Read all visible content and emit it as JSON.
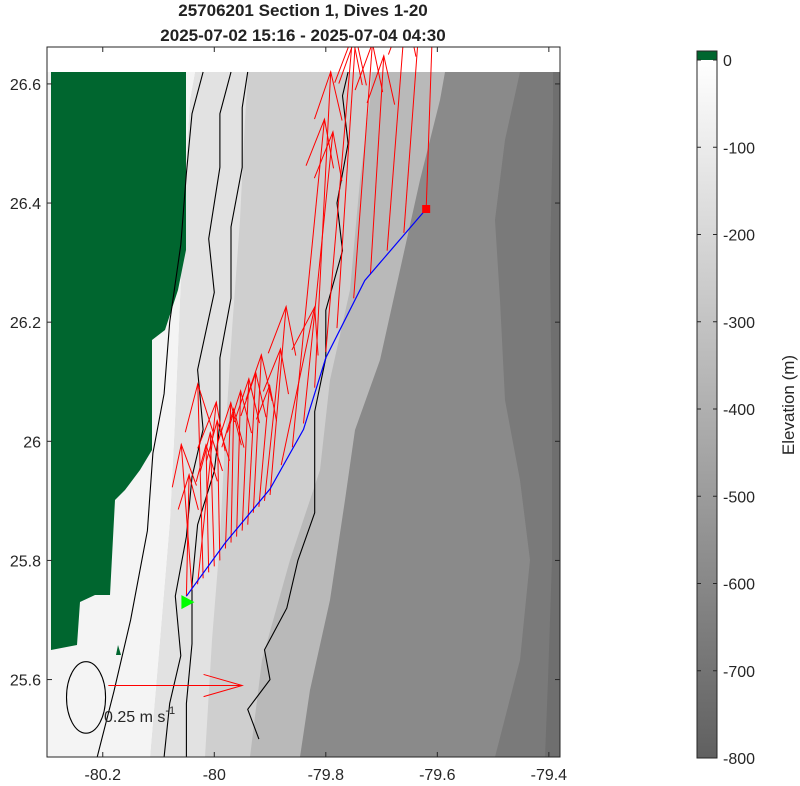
{
  "figure": {
    "title_line1": "25706201 Section 1, Dives 1-20",
    "title_line2": "2025-07-02 15:16 - 2025-07-04 04:30"
  },
  "chart_data": {
    "type": "map",
    "xlim": [
      -80.3,
      -79.38
    ],
    "ylim": [
      25.47,
      26.62
    ],
    "x_ticks": [
      -80.2,
      -80.0,
      -79.8,
      -79.6,
      -79.4
    ],
    "x_tick_labels": [
      "-80.2",
      "-80",
      "-79.8",
      "-79.6",
      "-79.4"
    ],
    "y_ticks": [
      25.6,
      25.8,
      26.0,
      26.2,
      26.4,
      26.6
    ],
    "y_tick_labels": [
      "25.6",
      "25.8",
      "26",
      "26.2",
      "26.4",
      "26.6"
    ],
    "track": {
      "color": "#0000ff",
      "points": [
        [
          -80.05,
          25.74
        ],
        [
          -79.98,
          25.83
        ],
        [
          -79.9,
          25.92
        ],
        [
          -79.84,
          26.02
        ],
        [
          -79.8,
          26.14
        ],
        [
          -79.73,
          26.27
        ],
        [
          -79.62,
          26.39
        ]
      ],
      "start": {
        "lon": -80.05,
        "lat": 25.73,
        "color": "#00ff00",
        "marker": "triangle"
      },
      "end": {
        "lon": -79.62,
        "lat": 26.39,
        "color": "#ff0000",
        "marker": "square"
      }
    },
    "current_vectors": {
      "color": "#ff0000",
      "vectors": [
        {
          "lon": -80.05,
          "lat": 25.74,
          "u": 0.02,
          "v": 1.0
        },
        {
          "lon": -80.04,
          "lat": 25.75,
          "u": -0.08,
          "v": 1.2
        },
        {
          "lon": -80.03,
          "lat": 25.76,
          "u": 0.14,
          "v": 1.5
        },
        {
          "lon": -80.02,
          "lat": 25.77,
          "u": -0.04,
          "v": 1.6
        },
        {
          "lon": -80.01,
          "lat": 25.78,
          "u": -0.02,
          "v": 1.05
        },
        {
          "lon": -80.0,
          "lat": 25.79,
          "u": -0.03,
          "v": 1.1
        },
        {
          "lon": -79.99,
          "lat": 25.8,
          "u": -0.02,
          "v": 1.15
        },
        {
          "lon": -79.98,
          "lat": 25.82,
          "u": 0.04,
          "v": 1.2
        },
        {
          "lon": -79.97,
          "lat": 25.83,
          "u": 0.02,
          "v": 1.1
        },
        {
          "lon": -79.96,
          "lat": 25.84,
          "u": 0.03,
          "v": 1.2
        },
        {
          "lon": -79.95,
          "lat": 25.85,
          "u": 0.05,
          "v": 1.25
        },
        {
          "lon": -79.94,
          "lat": 25.86,
          "u": 0.06,
          "v": 1.25
        },
        {
          "lon": -79.93,
          "lat": 25.88,
          "u": 0.06,
          "v": 1.3
        },
        {
          "lon": -79.92,
          "lat": 25.89,
          "u": 0.08,
          "v": 1.0
        },
        {
          "lon": -79.91,
          "lat": 25.9,
          "u": 0.12,
          "v": 1.25
        },
        {
          "lon": -79.9,
          "lat": 25.91,
          "u": 0.12,
          "v": 1.55
        },
        {
          "lon": -79.88,
          "lat": 25.96,
          "u": 0.25,
          "v": 1.3
        },
        {
          "lon": -79.86,
          "lat": 25.99,
          "u": 0.24,
          "v": 2.7
        },
        {
          "lon": -79.84,
          "lat": 26.03,
          "u": 0.22,
          "v": 2.4
        },
        {
          "lon": -79.82,
          "lat": 26.09,
          "u": 0.12,
          "v": 2.6
        },
        {
          "lon": -79.8,
          "lat": 26.15,
          "u": 0.2,
          "v": 2.6
        },
        {
          "lon": -79.78,
          "lat": 26.19,
          "u": 0.14,
          "v": 2.4
        },
        {
          "lon": -79.75,
          "lat": 26.24,
          "u": 0.14,
          "v": 2.1
        },
        {
          "lon": -79.72,
          "lat": 26.28,
          "u": 0.1,
          "v": 1.8
        },
        {
          "lon": -79.69,
          "lat": 26.32,
          "u": 0.14,
          "v": 2.0
        },
        {
          "lon": -79.66,
          "lat": 26.35,
          "u": 0.18,
          "v": 2.7
        },
        {
          "lon": -79.62,
          "lat": 26.39,
          "u": 0.06,
          "v": 1.9
        }
      ]
    },
    "scale_arrow": {
      "label": "0.25 m s",
      "superscript": "-1",
      "lon": -80.19,
      "lat": 25.59,
      "length_deg": 0.24
    },
    "isobaths": {
      "color": "#000000",
      "lines": [
        [
          [
            -80.21,
            25.47
          ],
          [
            -80.18,
            25.58
          ],
          [
            -80.15,
            25.7
          ],
          [
            -80.12,
            25.85
          ],
          [
            -80.11,
            25.98
          ],
          [
            -80.09,
            26.08
          ],
          [
            -80.08,
            26.2
          ],
          [
            -80.06,
            26.33
          ],
          [
            -80.05,
            26.45
          ],
          [
            -80.04,
            26.55
          ],
          [
            -80.02,
            26.62
          ]
        ],
        [
          [
            -80.09,
            25.47
          ],
          [
            -80.08,
            25.56
          ],
          [
            -80.06,
            25.64
          ],
          [
            -80.07,
            25.74
          ],
          [
            -80.05,
            25.84
          ],
          [
            -80.04,
            25.94
          ],
          [
            -80.02,
            26.02
          ],
          [
            -80.03,
            26.12
          ],
          [
            -80.0,
            26.25
          ],
          [
            -80.01,
            26.34
          ],
          [
            -79.99,
            26.46
          ],
          [
            -79.99,
            26.55
          ],
          [
            -79.97,
            26.62
          ]
        ],
        [
          [
            -80.05,
            25.47
          ],
          [
            -80.05,
            25.56
          ],
          [
            -80.04,
            25.66
          ],
          [
            -80.04,
            25.76
          ],
          [
            -80.03,
            25.86
          ],
          [
            -80.0,
            25.95
          ],
          [
            -79.99,
            26.03
          ],
          [
            -79.99,
            26.14
          ],
          [
            -79.97,
            26.24
          ],
          [
            -79.97,
            26.36
          ],
          [
            -79.95,
            26.46
          ],
          [
            -79.95,
            26.56
          ],
          [
            -79.94,
            26.62
          ]
        ],
        [
          [
            -79.92,
            25.5
          ],
          [
            -79.94,
            25.55
          ],
          [
            -79.9,
            25.6
          ],
          [
            -79.91,
            25.65
          ],
          [
            -79.87,
            25.72
          ],
          [
            -79.85,
            25.8
          ],
          [
            -79.82,
            25.88
          ],
          [
            -79.82,
            25.96
          ],
          [
            -79.82,
            26.05
          ],
          [
            -79.8,
            26.14
          ],
          [
            -79.8,
            26.22
          ],
          [
            -79.77,
            26.32
          ],
          [
            -79.78,
            26.4
          ],
          [
            -79.76,
            26.5
          ],
          [
            -79.77,
            26.58
          ],
          [
            -79.76,
            26.62
          ]
        ]
      ],
      "loop": {
        "lon": -80.23,
        "lat": 25.57,
        "rx": 0.035,
        "ry": 0.06
      }
    },
    "land_color": "#00662f",
    "colorbar": {
      "label": "Elevation (m)",
      "ticks": [
        0,
        -100,
        -200,
        -300,
        -400,
        -500,
        -600,
        -700,
        -800
      ],
      "tick_labels": [
        "0",
        "-100",
        "-200",
        "-300",
        "-400",
        "-500",
        "-600",
        "-700",
        "-800"
      ],
      "range": [
        -800,
        0
      ],
      "colormap": "gray",
      "land_color": "#00662f"
    }
  }
}
